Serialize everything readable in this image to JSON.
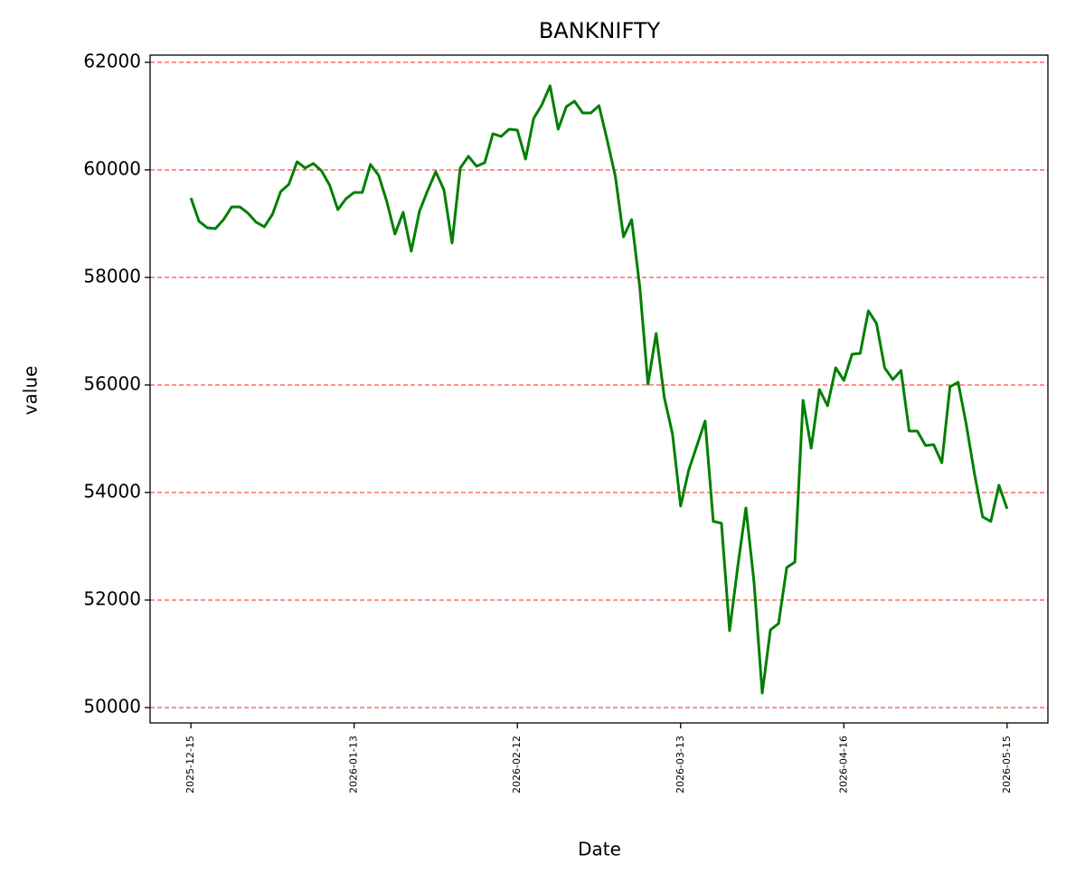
{
  "chart_data": {
    "type": "line",
    "title": "BANKNIFTY",
    "x_label": "Date",
    "y_label": "value",
    "categories": [
      "2025-12-15",
      null,
      null,
      null,
      null,
      null,
      null,
      null,
      null,
      null,
      null,
      null,
      null,
      null,
      null,
      null,
      null,
      null,
      null,
      null,
      "2026-01-13",
      null,
      null,
      null,
      null,
      null,
      null,
      null,
      null,
      null,
      null,
      null,
      null,
      null,
      null,
      null,
      null,
      null,
      null,
      null,
      "2026-02-12",
      null,
      null,
      null,
      null,
      null,
      null,
      null,
      null,
      null,
      null,
      null,
      null,
      null,
      null,
      null,
      null,
      null,
      null,
      null,
      "2026-03-13",
      null,
      null,
      null,
      null,
      null,
      null,
      null,
      null,
      null,
      null,
      null,
      null,
      null,
      null,
      null,
      null,
      null,
      null,
      null,
      "2026-04-16",
      null,
      null,
      null,
      null,
      null,
      null,
      null,
      null,
      null,
      null,
      null,
      null,
      null,
      null,
      null,
      null,
      null,
      null,
      null,
      "2026-05-15"
    ],
    "values": [
      59479,
      59042,
      58924,
      58908,
      59076,
      59311,
      59311,
      59193,
      59025,
      58941,
      59176,
      59597,
      59731,
      60151,
      60034,
      60118,
      59983,
      59714,
      59261,
      59462,
      59580,
      59580,
      60101,
      59899,
      59412,
      58807,
      59210,
      58487,
      59227,
      59613,
      59966,
      59630,
      58639,
      60034,
      60252,
      60067,
      60134,
      60672,
      60622,
      60756,
      60739,
      60202,
      60958,
      61210,
      61563,
      60756,
      61176,
      61277,
      61059,
      61059,
      61193,
      60555,
      59882,
      58756,
      59076,
      57815,
      56017,
      56958,
      55765,
      55092,
      53748,
      54420,
      54874,
      55328,
      53462,
      53429,
      51429,
      52622,
      53714,
      52319,
      50269,
      51445,
      51563,
      52605,
      52706,
      55714,
      54824,
      55916,
      55613,
      56319,
      56084,
      56571,
      56588,
      57378,
      57143,
      56319,
      56101,
      56269,
      55143,
      55143,
      54874,
      54891,
      54555,
      55966,
      56050,
      55261,
      54353,
      53546,
      53462,
      54134,
      53697
    ],
    "color": "#008000",
    "ylim": [
      49714,
      62134
    ],
    "yticks": [
      50000,
      52000,
      54000,
      56000,
      58000,
      60000,
      62000
    ],
    "grid": true
  }
}
